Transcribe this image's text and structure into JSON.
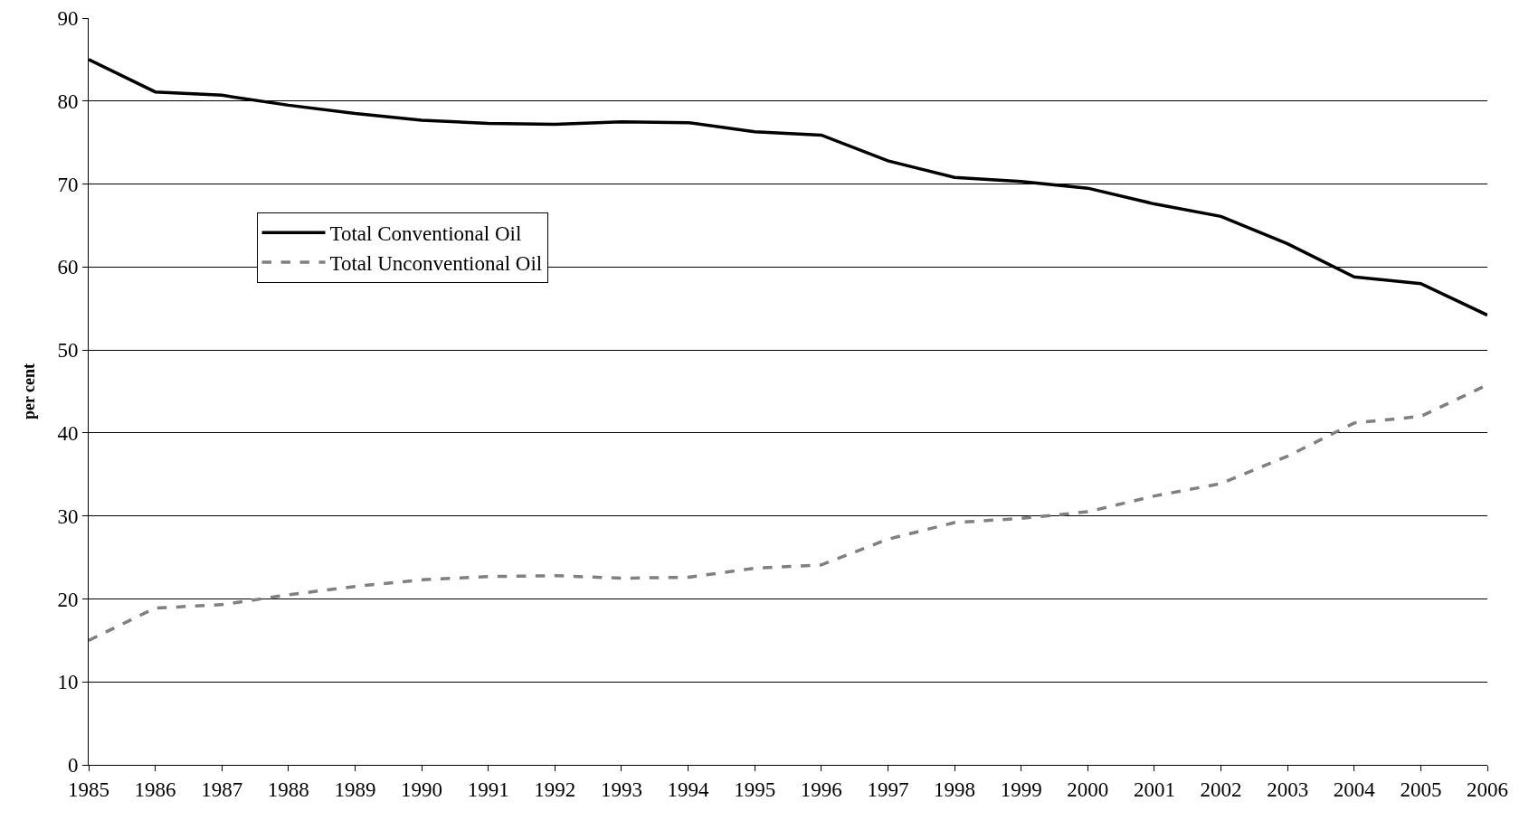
{
  "chart_data": {
    "type": "line",
    "ylabel": "per cent",
    "x": [
      1985,
      1986,
      1987,
      1988,
      1989,
      1990,
      1991,
      1992,
      1993,
      1994,
      1995,
      1996,
      1997,
      1998,
      1999,
      2000,
      2001,
      2002,
      2003,
      2004,
      2005,
      2006
    ],
    "series": [
      {
        "name": "Total Conventional Oil",
        "color": "#000000",
        "line_style": "solid",
        "values": [
          85,
          81.1,
          80.7,
          79.5,
          78.5,
          77.7,
          77.3,
          77.2,
          77.5,
          77.4,
          76.3,
          75.9,
          72.8,
          70.8,
          70.3,
          69.5,
          67.6,
          66.1,
          62.8,
          58.8,
          58,
          54.2
        ]
      },
      {
        "name": "Total Unconventional Oil",
        "color": "#808080",
        "line_style": "dashed",
        "values": [
          15,
          18.9,
          19.3,
          20.5,
          21.5,
          22.3,
          22.7,
          22.8,
          22.5,
          22.6,
          23.7,
          24.1,
          27.2,
          29.2,
          29.7,
          30.5,
          32.4,
          33.9,
          37.2,
          41.2,
          42,
          45.8
        ]
      }
    ],
    "xlim": [
      1985,
      2006
    ],
    "xticks": [
      1985,
      1986,
      1987,
      1988,
      1989,
      1990,
      1991,
      1992,
      1993,
      1994,
      1995,
      1996,
      1997,
      1998,
      1999,
      2000,
      2001,
      2002,
      2003,
      2004,
      2005,
      2006
    ],
    "ylim": [
      0,
      90
    ],
    "yticks": [
      0,
      10,
      20,
      30,
      40,
      50,
      60,
      70,
      80,
      90
    ],
    "grid": "y",
    "legend": "left",
    "marker": "none"
  }
}
